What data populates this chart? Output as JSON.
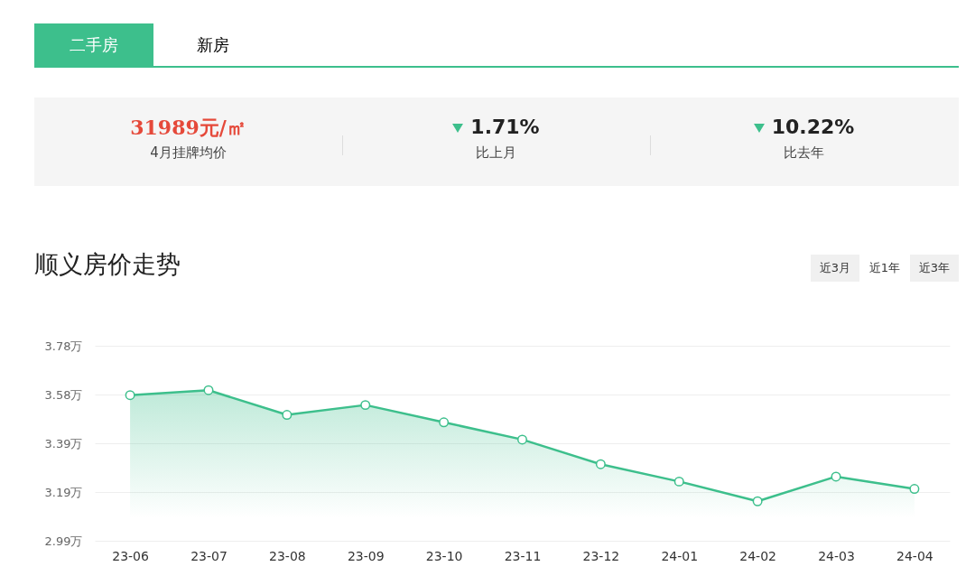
{
  "chart_data": [
    {
      "type": "other",
      "annotations": [
        "二手房",
        "新房",
        "31989元/㎡",
        "4月挂牌均价",
        "1.71%",
        "比上月",
        "10.22%",
        "比去年"
      ]
    },
    {
      "type": "area",
      "title": "顺义房价走势",
      "annotations": [
        "近3月",
        "近1年",
        "近3年"
      ],
      "categories": [
        "23-06",
        "23-07",
        "23-08",
        "23-09",
        "23-10",
        "23-11",
        "23-12",
        "24-01",
        "24-02",
        "24-03",
        "24-04"
      ],
      "series": [
        {
          "color": "#3dbf8c",
          "values": [
            3.58,
            3.6,
            3.5,
            3.54,
            3.47,
            3.4,
            3.3,
            3.23,
            3.15,
            3.25,
            3.2
          ]
        }
      ],
      "ylim": [
        2.99,
        3.78
      ],
      "yticks": [
        {
          "value": 2.99,
          "label": "2.99万"
        },
        {
          "value": 3.1875,
          "label": "3.19万"
        },
        {
          "value": 3.385,
          "label": "3.39万"
        },
        {
          "value": 3.5825,
          "label": "3.58万"
        },
        {
          "value": 3.78,
          "label": "3.78万"
        }
      ],
      "grid": "y",
      "marker": "circle",
      "line_style": "solid"
    }
  ]
}
